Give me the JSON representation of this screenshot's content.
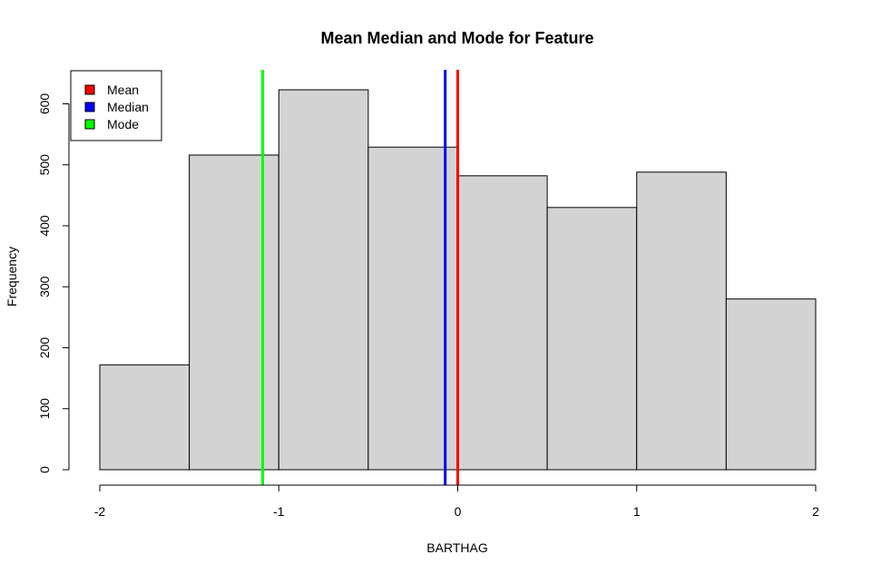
{
  "chart_data": {
    "type": "bar",
    "title": "Mean Median and Mode for Feature",
    "xlabel": "BARTHAG",
    "ylabel": "Frequency",
    "bin_edges": [
      -2,
      -1.5,
      -1,
      -0.5,
      0,
      0.5,
      1,
      1.5,
      2
    ],
    "values": [
      172,
      516,
      623,
      529,
      482,
      430,
      488,
      280
    ],
    "xlim": [
      -2,
      2
    ],
    "ylim": [
      0,
      640
    ],
    "x_ticks": [
      -2,
      -1,
      0,
      1,
      2
    ],
    "y_ticks": [
      0,
      100,
      200,
      300,
      400,
      500,
      600
    ],
    "bar_color": "#d3d3d3",
    "vlines": [
      {
        "name": "Mean",
        "x": 0.0,
        "color": "#ff0000"
      },
      {
        "name": "Median",
        "x": -0.07,
        "color": "#0000ff"
      },
      {
        "name": "Mode",
        "x": -1.09,
        "color": "#00ff00"
      }
    ],
    "legend": {
      "placement": "top-left",
      "entries": [
        {
          "label": "Mean",
          "color": "#ff0000"
        },
        {
          "label": "Median",
          "color": "#0000ff"
        },
        {
          "label": "Mode",
          "color": "#00ff00"
        }
      ]
    },
    "grid": false
  }
}
